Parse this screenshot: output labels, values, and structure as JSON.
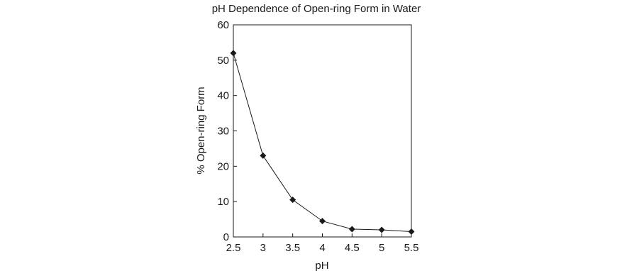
{
  "chart_data": {
    "type": "line",
    "title": "pH Dependence of Open-ring Form in Water",
    "xlabel": "pH",
    "ylabel": "% Open-ring Form",
    "xlim": [
      2.5,
      5.5
    ],
    "ylim": [
      0,
      60
    ],
    "x_ticks": [
      2.5,
      3,
      3.5,
      4,
      4.5,
      5,
      5.5
    ],
    "x_tick_labels": [
      "2.5",
      "3",
      "3.5",
      "4",
      "4.5",
      "5",
      "5.5"
    ],
    "y_ticks": [
      0,
      10,
      20,
      30,
      40,
      50,
      60
    ],
    "y_tick_labels": [
      "0",
      "10",
      "20",
      "30",
      "40",
      "50",
      "60"
    ],
    "grid": false,
    "marker": "diamond",
    "colors": {
      "line": "#1a1a1a",
      "marker": "#1a1a1a",
      "frame": "#1a1a1a"
    },
    "series": [
      {
        "x": [
          2.5,
          3,
          3.5,
          4,
          4.5,
          5,
          5.5
        ],
        "y": [
          52,
          23,
          10.5,
          4.5,
          2.2,
          2,
          1.5
        ]
      }
    ]
  }
}
